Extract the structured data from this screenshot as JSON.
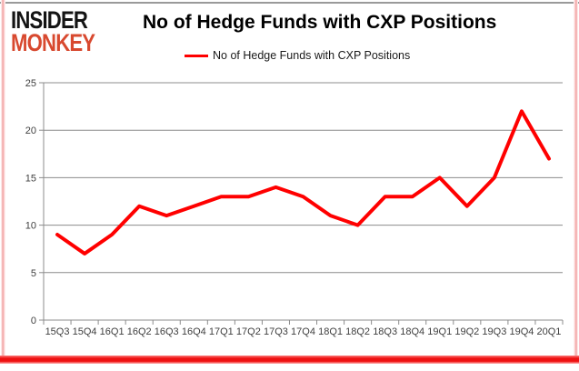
{
  "logo": {
    "line1": "INSIDER",
    "line2": "MONKEY"
  },
  "header": {
    "title": "No of Hedge Funds with CXP Positions"
  },
  "legend": {
    "label": "No of Hedge Funds with CXP Positions"
  },
  "colors": {
    "line": "#ff0000",
    "grid": "#8c8c8c",
    "tick_text": "#3f3f3f",
    "logo_red": "#d8492f",
    "bottom_bar": "#ee1111",
    "side_border": "#f2a2a2"
  },
  "chart_data": {
    "type": "line",
    "title": "No of Hedge Funds with CXP Positions",
    "categories": [
      "15Q3",
      "15Q4",
      "16Q1",
      "16Q2",
      "16Q3",
      "16Q4",
      "17Q1",
      "17Q2",
      "17Q3",
      "17Q4",
      "18Q1",
      "18Q2",
      "18Q3",
      "18Q4",
      "19Q1",
      "19Q2",
      "19Q3",
      "19Q4",
      "20Q1"
    ],
    "series": [
      {
        "name": "No of Hedge Funds with CXP Positions",
        "color": "#ff0000",
        "values": [
          9,
          7,
          9,
          12,
          11,
          12,
          13,
          13,
          14,
          13,
          11,
          10,
          13,
          13,
          15,
          12,
          15,
          22,
          17
        ]
      }
    ],
    "xlabel": "",
    "ylabel": "",
    "ylim": [
      0,
      25
    ],
    "yticks": [
      0,
      5,
      10,
      15,
      20,
      25
    ],
    "grid": true,
    "legend_position": "top"
  }
}
